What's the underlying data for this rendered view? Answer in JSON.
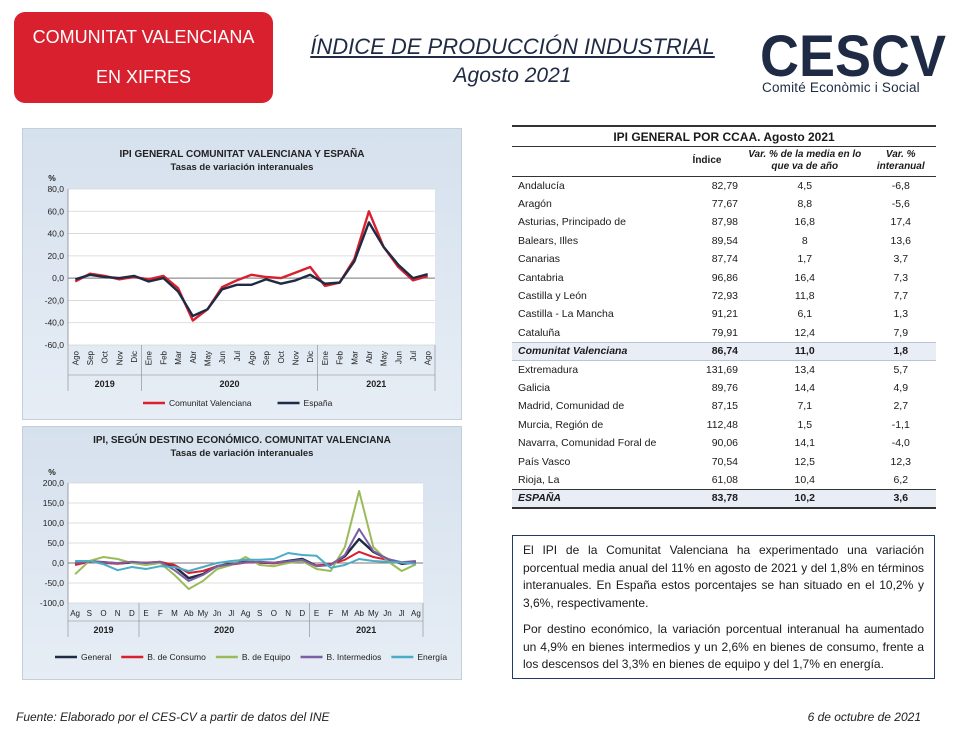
{
  "header": {
    "badge_line1": "COMUNITAT VALENCIANA",
    "badge_line2": "EN XIFRES",
    "title": "ÍNDICE DE PRODUCCIÓN INDUSTRIAL",
    "subtitle": "Agosto 2021",
    "logo_text": "CESCV",
    "logo_tagline": "Comité Econòmic i Social",
    "colors": {
      "red": "#d8202f",
      "navy": "#1f2a44"
    }
  },
  "chart_data": [
    {
      "type": "line",
      "title": "IPI GENERAL COMUNITAT VALENCIANA Y ESPAÑA",
      "subtitle": "Tasas de variación interanuales",
      "ylabel": "%",
      "ylim": [
        -60,
        80
      ],
      "yticks": [
        "80,0",
        "60,0",
        "40,0",
        "20,0",
        "0,0",
        "-20,0",
        "-40,0",
        "-60,0"
      ],
      "ytick_values": [
        80,
        60,
        40,
        20,
        0,
        -20,
        -40,
        -60
      ],
      "categories": [
        "Ago",
        "Sep",
        "Oct",
        "Nov",
        "Dic",
        "Ene",
        "Feb",
        "Mar",
        "Abr",
        "May",
        "Jun",
        "Jul",
        "Ago",
        "Sep",
        "Oct",
        "Nov",
        "Dic",
        "Ene",
        "Feb",
        "Mar",
        "Abr",
        "May",
        "Jun",
        "Jul",
        "Ago"
      ],
      "year_labels": [
        "2019",
        "2020",
        "2021"
      ],
      "year_spans": [
        [
          0,
          4
        ],
        [
          5,
          16
        ],
        [
          17,
          24
        ]
      ],
      "grid": true,
      "legend_position": "bottom",
      "series": [
        {
          "name": "Comunitat Valenciana",
          "color": "#d8202f",
          "values": [
            -3,
            4,
            2,
            -1,
            1,
            -1,
            2,
            -9,
            -38,
            -28,
            -8,
            -2,
            3,
            1,
            0,
            5,
            10,
            -7,
            -4,
            17,
            60,
            28,
            10,
            -2,
            1.8
          ]
        },
        {
          "name": "España",
          "color": "#1f2a44",
          "values": [
            -1,
            3,
            1,
            0,
            2,
            -3,
            0,
            -12,
            -34,
            -28,
            -10,
            -6,
            -6,
            -1,
            -5,
            -2,
            3,
            -5,
            -4,
            15,
            50,
            28,
            12,
            0,
            3.6
          ]
        }
      ]
    },
    {
      "type": "line",
      "title": "IPI, SEGÚN DESTINO ECONÓMICO. COMUNITAT VALENCIANA",
      "subtitle": "Tasas de variación interanuales",
      "ylabel": "%",
      "ylim": [
        -100,
        200
      ],
      "yticks": [
        "200,0",
        "150,0",
        "100,0",
        "50,0",
        "0,0",
        "-50,0",
        "-100,0"
      ],
      "ytick_values": [
        200,
        150,
        100,
        50,
        0,
        -50,
        -100
      ],
      "categories": [
        "Ag",
        "S",
        "O",
        "N",
        "D",
        "E",
        "F",
        "M",
        "Ab",
        "My",
        "Jn",
        "Jl",
        "Ag",
        "S",
        "O",
        "N",
        "D",
        "E",
        "F",
        "M",
        "Ab",
        "My",
        "Jn",
        "Jl",
        "Ag"
      ],
      "year_labels": [
        "2019",
        "2020",
        "2021"
      ],
      "year_spans": [
        [
          0,
          4
        ],
        [
          5,
          16
        ],
        [
          17,
          24
        ]
      ],
      "grid": true,
      "legend_position": "bottom",
      "series": [
        {
          "name": "General",
          "color": "#1f2a44",
          "values": [
            -3,
            4,
            2,
            -1,
            1,
            -1,
            2,
            -9,
            -38,
            -28,
            -8,
            -2,
            3,
            1,
            0,
            5,
            10,
            -7,
            -4,
            17,
            60,
            28,
            10,
            -2,
            1.8
          ]
        },
        {
          "name": "B. de Consumo",
          "color": "#d8202f",
          "values": [
            -5,
            3,
            0,
            -2,
            2,
            1,
            3,
            -5,
            -25,
            -20,
            -8,
            -4,
            1,
            2,
            -1,
            3,
            5,
            -6,
            -3,
            8,
            28,
            15,
            8,
            0,
            2.6
          ]
        },
        {
          "name": "B. de Equipo",
          "color": "#9bbb59",
          "values": [
            -28,
            5,
            15,
            10,
            0,
            -5,
            0,
            -30,
            -65,
            -45,
            -15,
            -5,
            15,
            -5,
            -8,
            0,
            5,
            -15,
            -20,
            40,
            180,
            40,
            5,
            -20,
            -3.3
          ]
        },
        {
          "name": "B. Intermedios",
          "color": "#7b5fa5",
          "values": [
            0,
            4,
            2,
            0,
            3,
            0,
            3,
            -18,
            -45,
            -30,
            -8,
            -3,
            2,
            3,
            1,
            4,
            8,
            -8,
            -5,
            20,
            85,
            30,
            10,
            2,
            4.9
          ]
        },
        {
          "name": "Energía",
          "color": "#4bacc6",
          "values": [
            5,
            5,
            -3,
            -18,
            -10,
            -15,
            -8,
            -10,
            -20,
            -10,
            0,
            5,
            8,
            8,
            10,
            25,
            20,
            18,
            -12,
            -5,
            10,
            5,
            3,
            1,
            -1.7
          ]
        }
      ]
    }
  ],
  "table": {
    "caption": "IPI GENERAL POR CCAA. Agosto 2021",
    "columns": [
      "Índice",
      "Var. % de la media en lo que va de año",
      "Var. % interanual"
    ],
    "rows": [
      {
        "name": "Andalucía",
        "index": "82,79",
        "ytd": "4,5",
        "yoy": "-6,8"
      },
      {
        "name": "Aragón",
        "index": "77,67",
        "ytd": "8,8",
        "yoy": "-5,6"
      },
      {
        "name": "Asturias, Principado de",
        "index": "87,98",
        "ytd": "16,8",
        "yoy": "17,4"
      },
      {
        "name": "Balears, Illes",
        "index": "89,54",
        "ytd": "8",
        "yoy": "13,6"
      },
      {
        "name": "Canarias",
        "index": "87,74",
        "ytd": "1,7",
        "yoy": "3,7"
      },
      {
        "name": "Cantabria",
        "index": "96,86",
        "ytd": "16,4",
        "yoy": "7,3"
      },
      {
        "name": "Castilla y León",
        "index": "72,93",
        "ytd": "11,8",
        "yoy": "7,7"
      },
      {
        "name": "Castilla - La Mancha",
        "index": "91,21",
        "ytd": "6,1",
        "yoy": "1,3"
      },
      {
        "name": "Cataluña",
        "index": "79,91",
        "ytd": "12,4",
        "yoy": "7,9"
      },
      {
        "name": "Comunitat Valenciana",
        "index": "86,74",
        "ytd": "11,0",
        "yoy": "1,8",
        "highlight": true
      },
      {
        "name": "Extremadura",
        "index": "131,69",
        "ytd": "13,4",
        "yoy": "5,7"
      },
      {
        "name": "Galicia",
        "index": "89,76",
        "ytd": "14,4",
        "yoy": "4,9"
      },
      {
        "name": "Madrid, Comunidad de",
        "index": "87,15",
        "ytd": "7,1",
        "yoy": "2,7"
      },
      {
        "name": "Murcia, Región de",
        "index": "112,48",
        "ytd": "1,5",
        "yoy": "-1,1"
      },
      {
        "name": "Navarra, Comunidad Foral de",
        "index": "90,06",
        "ytd": "14,1",
        "yoy": "-4,0"
      },
      {
        "name": "País Vasco",
        "index": "70,54",
        "ytd": "12,5",
        "yoy": "12,3"
      },
      {
        "name": "Rioja, La",
        "index": "61,08",
        "ytd": "10,4",
        "yoy": "6,2"
      },
      {
        "name": "ESPAÑA",
        "index": "83,78",
        "ytd": "10,2",
        "yoy": "3,6",
        "total": true
      }
    ]
  },
  "summary": {
    "p1": "El IPI de la Comunitat Valenciana ha experimentado una variación porcentual media anual del 11% en agosto de 2021 y del 1,8% en términos interanuales. En España estos porcentajes se han situado en el 10,2% y 3,6%, respectivamente.",
    "p2": "Por destino económico, la variación porcentual interanual ha aumentado un 4,9% en bienes intermedios y un 2,6% en bienes de consumo, frente a los descensos del 3,3% en bienes de equipo y del 1,7% en energía."
  },
  "footer": {
    "source": "Fuente: Elaborado por el CES-CV a partir de datos del INE",
    "date": "6 de octubre de 2021"
  }
}
